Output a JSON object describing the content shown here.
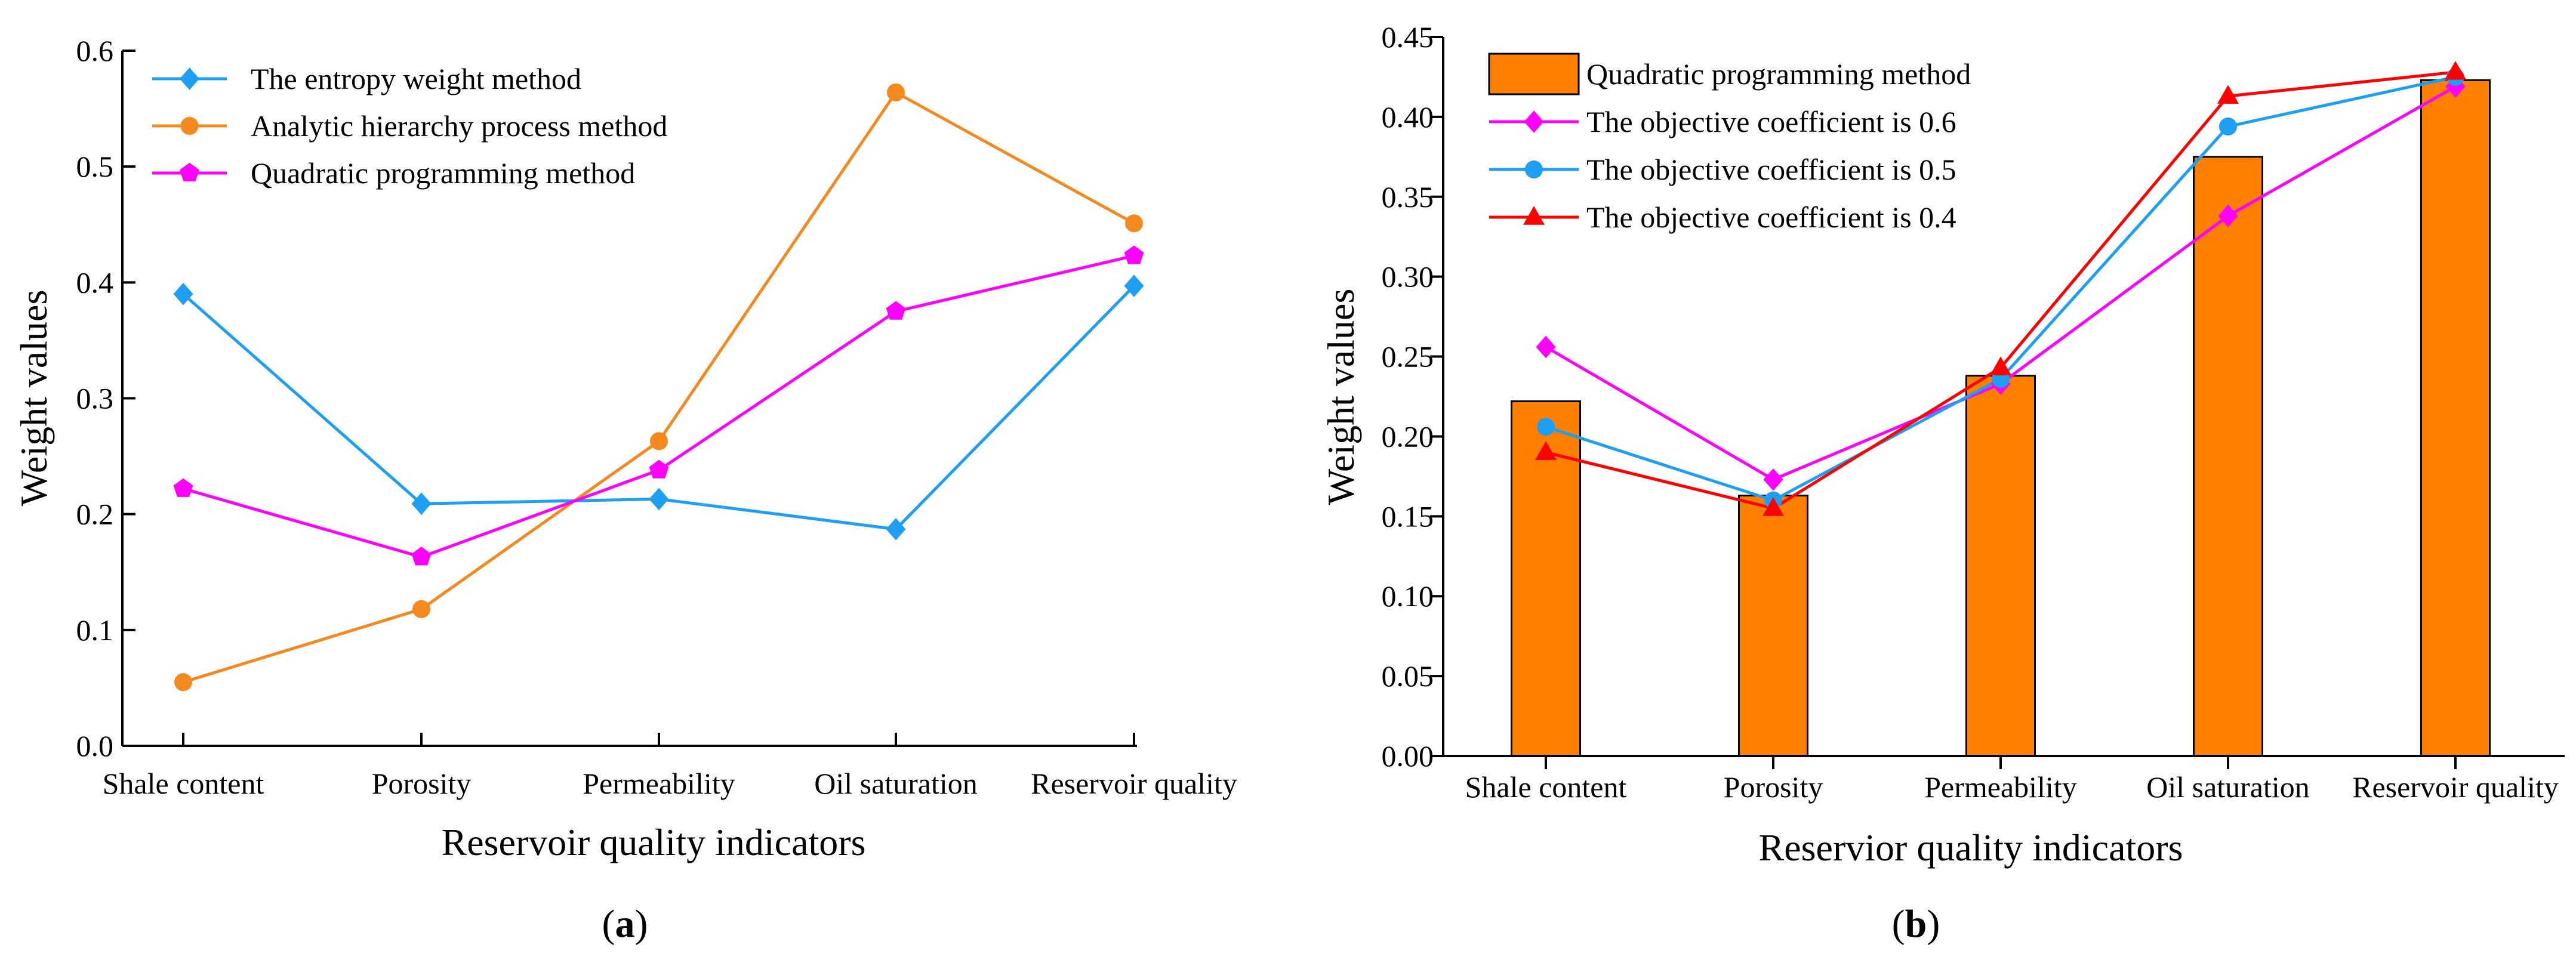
{
  "chart_data": [
    {
      "type": "line",
      "id": "a",
      "caption": "a",
      "categories": [
        "Shale content",
        "Porosity",
        "Permeability",
        "Oil saturation",
        "Reservoir quality"
      ],
      "xlabel": "Reservoir quality indicators",
      "ylabel": "Weight values",
      "ylim": [
        0,
        0.6
      ],
      "yticks": [
        0,
        0.1,
        0.2,
        0.3,
        0.4,
        0.5,
        0.6
      ],
      "ytick_labels": [
        "0.0",
        "0.1",
        "0.2",
        "0.3",
        "0.4",
        "0.5",
        "0.6"
      ],
      "grid": false,
      "legend_position": "top-left",
      "series": [
        {
          "name": "The entropy weight method",
          "color": "#1E9FF2",
          "marker": "diamond",
          "values": [
            0.39,
            0.209,
            0.213,
            0.187,
            0.397
          ]
        },
        {
          "name": "Analytic hierarchy process method",
          "color": "#F4891F",
          "marker": "circle",
          "values": [
            0.055,
            0.118,
            0.263,
            0.564,
            0.451
          ]
        },
        {
          "name": "Quadratic programming method",
          "color": "#FF00FF",
          "marker": "pentagon",
          "values": [
            0.222,
            0.163,
            0.238,
            0.375,
            0.423
          ]
        }
      ]
    },
    {
      "type": "bar",
      "id": "b",
      "caption": "b",
      "categories": [
        "Shale content",
        "Porosity",
        "Permeability",
        "Oil saturation",
        "Reservoir quality"
      ],
      "xlabel": "Reservior quality indicators",
      "ylabel": "Weight values",
      "ylim": [
        0,
        0.45
      ],
      "yticks": [
        0,
        0.05,
        0.1,
        0.15,
        0.2,
        0.25,
        0.3,
        0.35,
        0.4,
        0.45
      ],
      "ytick_labels": [
        "0.00",
        "0.05",
        "0.10",
        "0.15",
        "0.20",
        "0.25",
        "0.30",
        "0.35",
        "0.40",
        "0.45"
      ],
      "grid": false,
      "legend_position": "top-left",
      "bars": {
        "name": "Quadratic programming method",
        "color": "#FF8000",
        "values": [
          0.222,
          0.163,
          0.238,
          0.375,
          0.423
        ]
      },
      "series": [
        {
          "name": "The objective coefficient is 0.6",
          "color": "#FF00FF",
          "marker": "diamond",
          "values": [
            0.256,
            0.173,
            0.233,
            0.338,
            0.419
          ]
        },
        {
          "name": "The objective coefficient is 0.5",
          "color": "#1E9FF2",
          "marker": "circle",
          "values": [
            0.206,
            0.16,
            0.236,
            0.394,
            0.425
          ]
        },
        {
          "name": "The objective coefficient is 0.4",
          "color": "#FF0000",
          "marker": "triangle",
          "values": [
            0.19,
            0.155,
            0.243,
            0.413,
            0.428
          ]
        }
      ]
    }
  ]
}
